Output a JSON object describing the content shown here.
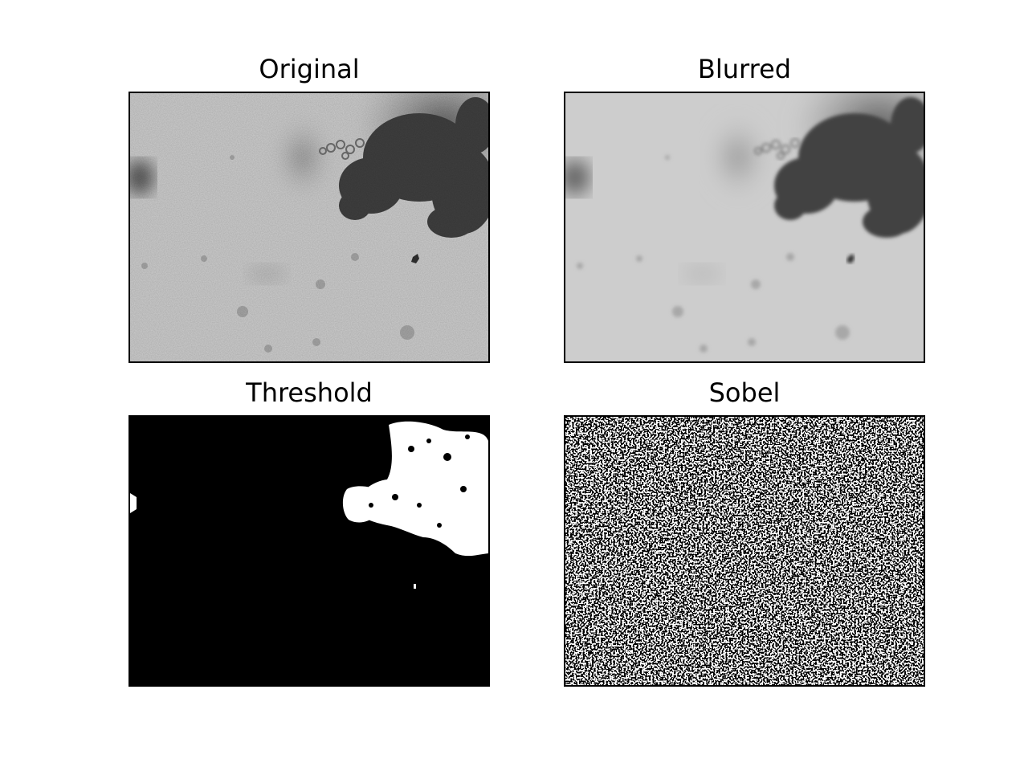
{
  "figure": {
    "panels": [
      {
        "id": "original",
        "title": "Original"
      },
      {
        "id": "blurred",
        "title": "Blurred"
      },
      {
        "id": "threshold",
        "title": "Threshold"
      },
      {
        "id": "sobel",
        "title": "Sobel"
      }
    ]
  }
}
